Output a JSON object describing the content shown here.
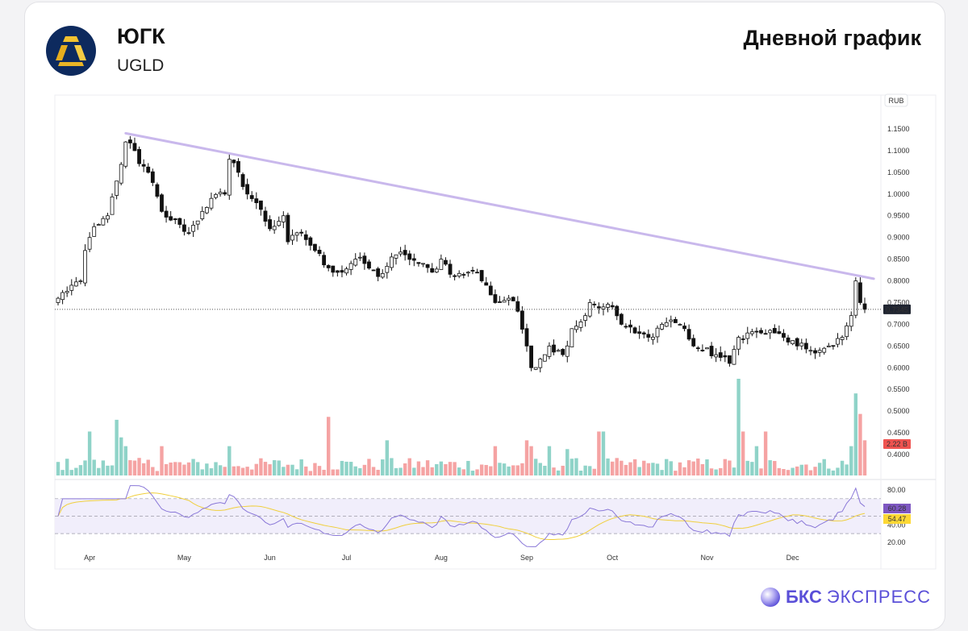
{
  "header": {
    "name": "ЮГК",
    "ticker": "UGLD",
    "title": "Дневной график"
  },
  "brand": {
    "bold": "БКС",
    "light": "ЭКСПРЕСС"
  },
  "colors": {
    "up": "#ffffff",
    "down": "#111111",
    "vol_up": "#8fd3c8",
    "vol_down": "#f5a3a3",
    "trend": "#c9b8ec",
    "rsi": "#8a78d8",
    "rsi_ma": "#f0cf3c"
  },
  "chart_data": {
    "type": "candlestick",
    "currency_label": "RUB",
    "price_ticks": [
      "1.1500",
      "1.1000",
      "1.0500",
      "1.0000",
      "0.9500",
      "0.9000",
      "0.8500",
      "0.8000",
      "0.7500",
      "0.7000",
      "0.6500",
      "0.6000",
      "0.5500",
      "0.5000",
      "0.4500",
      "0.4000"
    ],
    "price_tick_values": [
      1.15,
      1.1,
      1.05,
      1.0,
      0.95,
      0.9,
      0.85,
      0.8,
      0.75,
      0.7,
      0.65,
      0.6,
      0.55,
      0.5,
      0.45,
      0.4
    ],
    "ylim": [
      0.38,
      1.17
    ],
    "last_price_label": "0.7345",
    "last_price": 0.7345,
    "volume_label": "2.22 B",
    "months": [
      {
        "label": "Apr",
        "day": 7
      },
      {
        "label": "May",
        "day": 28
      },
      {
        "label": "Jun",
        "day": 47
      },
      {
        "label": "Jul",
        "day": 64
      },
      {
        "label": "Aug",
        "day": 85
      },
      {
        "label": "Sep",
        "day": 104
      },
      {
        "label": "Oct",
        "day": 123
      },
      {
        "label": "Nov",
        "day": 144
      },
      {
        "label": "Dec",
        "day": 163
      }
    ],
    "close_keypoints": [
      [
        0,
        0.76
      ],
      [
        3,
        0.79
      ],
      [
        5,
        0.8
      ],
      [
        6,
        0.87
      ],
      [
        7,
        0.9
      ],
      [
        9,
        0.93
      ],
      [
        11,
        0.95
      ],
      [
        13,
        1.03
      ],
      [
        15,
        1.12
      ],
      [
        17,
        1.1
      ],
      [
        18,
        1.07
      ],
      [
        20,
        1.05
      ],
      [
        23,
        0.96
      ],
      [
        25,
        0.94
      ],
      [
        27,
        0.93
      ],
      [
        29,
        0.91
      ],
      [
        32,
        0.96
      ],
      [
        34,
        0.99
      ],
      [
        37,
        1.0
      ],
      [
        38,
        1.08
      ],
      [
        40,
        1.05
      ],
      [
        42,
        1.0
      ],
      [
        44,
        0.98
      ],
      [
        47,
        0.92
      ],
      [
        50,
        0.95
      ],
      [
        51,
        0.89
      ],
      [
        54,
        0.91
      ],
      [
        57,
        0.87
      ],
      [
        60,
        0.83
      ],
      [
        63,
        0.82
      ],
      [
        66,
        0.85
      ],
      [
        68,
        0.84
      ],
      [
        71,
        0.81
      ],
      [
        75,
        0.86
      ],
      [
        77,
        0.86
      ],
      [
        80,
        0.84
      ],
      [
        83,
        0.82
      ],
      [
        85,
        0.85
      ],
      [
        88,
        0.81
      ],
      [
        91,
        0.82
      ],
      [
        93,
        0.82
      ],
      [
        95,
        0.79
      ],
      [
        97,
        0.75
      ],
      [
        100,
        0.76
      ],
      [
        102,
        0.73
      ],
      [
        104,
        0.65
      ],
      [
        105,
        0.6
      ],
      [
        107,
        0.62
      ],
      [
        109,
        0.65
      ],
      [
        112,
        0.63
      ],
      [
        114,
        0.69
      ],
      [
        117,
        0.72
      ],
      [
        118,
        0.75
      ],
      [
        121,
        0.74
      ],
      [
        123,
        0.74
      ],
      [
        125,
        0.7
      ],
      [
        128,
        0.68
      ],
      [
        131,
        0.67
      ],
      [
        134,
        0.7
      ],
      [
        136,
        0.71
      ],
      [
        139,
        0.69
      ],
      [
        141,
        0.65
      ],
      [
        143,
        0.64
      ],
      [
        146,
        0.63
      ],
      [
        149,
        0.61
      ],
      [
        151,
        0.67
      ],
      [
        153,
        0.68
      ],
      [
        156,
        0.68
      ],
      [
        159,
        0.68
      ],
      [
        161,
        0.67
      ],
      [
        164,
        0.65
      ],
      [
        167,
        0.64
      ],
      [
        169,
        0.64
      ],
      [
        172,
        0.65
      ],
      [
        174,
        0.67
      ],
      [
        176,
        0.72
      ],
      [
        177,
        0.8
      ],
      [
        178,
        0.75
      ],
      [
        179,
        0.7345
      ]
    ],
    "volume_spikes_b": [
      [
        7,
        1.5
      ],
      [
        13,
        1.9
      ],
      [
        14,
        1.3
      ],
      [
        15,
        1.0
      ],
      [
        23,
        1.0
      ],
      [
        38,
        1.0
      ],
      [
        60,
        2.0
      ],
      [
        73,
        1.2
      ],
      [
        97,
        1.0
      ],
      [
        104,
        1.2
      ],
      [
        105,
        1.0
      ],
      [
        109,
        1.0
      ],
      [
        113,
        0.9
      ],
      [
        120,
        1.5
      ],
      [
        121,
        1.5
      ],
      [
        151,
        3.3
      ],
      [
        152,
        1.5
      ],
      [
        155,
        1.0
      ],
      [
        157,
        1.5
      ],
      [
        176,
        1.0
      ],
      [
        177,
        2.8
      ],
      [
        178,
        2.1
      ],
      [
        179,
        1.2
      ]
    ],
    "volume_scale_max_b": 3.3,
    "trendline": {
      "from": [
        15,
        1.14
      ],
      "to": [
        181,
        0.805
      ]
    },
    "rsi": {
      "ticks": [
        "80.00",
        "40.00",
        "20.00"
      ],
      "tick_values": [
        80,
        40,
        20
      ],
      "band": [
        70,
        30
      ],
      "mid": 50,
      "value_label": "60.28",
      "ma_label": "54.47",
      "ylim": [
        12,
        88
      ]
    }
  }
}
